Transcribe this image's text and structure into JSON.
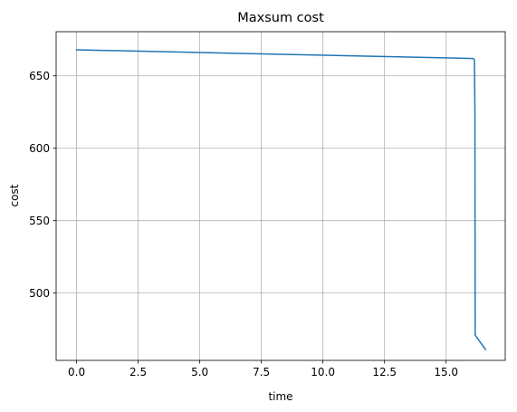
{
  "chart_data": {
    "type": "line",
    "title": "Maxsum cost",
    "xlabel": "time",
    "ylabel": "cost",
    "xlim": [
      -0.83,
      17.4
    ],
    "ylim": [
      453.5,
      680.5
    ],
    "x_ticks": [
      0.0,
      2.5,
      5.0,
      7.5,
      10.0,
      12.5,
      15.0
    ],
    "x_tick_labels": [
      "0.0",
      "2.5",
      "5.0",
      "7.5",
      "10.0",
      "12.5",
      "15.0"
    ],
    "y_ticks": [
      500,
      550,
      600,
      650
    ],
    "y_tick_labels": [
      "500",
      "550",
      "600",
      "650"
    ],
    "grid": true,
    "series": [
      {
        "color": "#1f77b4",
        "x": [
          0.0,
          16.1,
          16.15,
          16.17,
          16.18,
          16.6
        ],
        "y": [
          668,
          662,
          661,
          625,
          471,
          461
        ]
      }
    ]
  }
}
